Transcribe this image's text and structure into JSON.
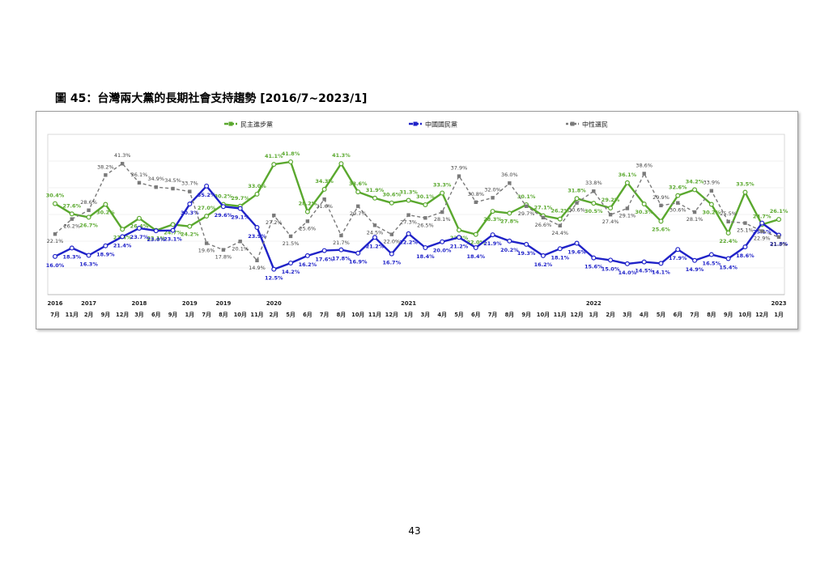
{
  "figure_title": "圖 45：台灣兩大黨的長期社會支持趨勢 [2016/7~2023/1]",
  "page_number": "43",
  "colors": {
    "dpp": "#5aa82e",
    "kmt": "#1f22c8",
    "neutral": "#7a7a7a"
  },
  "chart_data": {
    "type": "line",
    "title": "",
    "xlabel": "",
    "ylabel": "",
    "grid": true,
    "legend_position": "top",
    "ylim": [
      10,
      44
    ],
    "x": [
      {
        "year": "2016",
        "month": "7月"
      },
      {
        "year": "",
        "month": "11月"
      },
      {
        "year": "2017",
        "month": "2月"
      },
      {
        "year": "",
        "month": "9月"
      },
      {
        "year": "",
        "month": "12月"
      },
      {
        "year": "2018",
        "month": "3月"
      },
      {
        "year": "",
        "month": "6月"
      },
      {
        "year": "",
        "month": "9月"
      },
      {
        "year": "2019",
        "month": "1月"
      },
      {
        "year": "",
        "month": "7月"
      },
      {
        "year": "2019",
        "month": "8月"
      },
      {
        "year": "",
        "month": "10月"
      },
      {
        "year": "",
        "month": "11月"
      },
      {
        "year": "2020",
        "month": "2月"
      },
      {
        "year": "",
        "month": "5月"
      },
      {
        "year": "",
        "month": "6月"
      },
      {
        "year": "",
        "month": "7月"
      },
      {
        "year": "",
        "month": "8月"
      },
      {
        "year": "",
        "month": "10月"
      },
      {
        "year": "",
        "month": "11月"
      },
      {
        "year": "",
        "month": "12月"
      },
      {
        "year": "2021",
        "month": "1月"
      },
      {
        "year": "",
        "month": "3月"
      },
      {
        "year": "",
        "month": "4月"
      },
      {
        "year": "",
        "month": "5月"
      },
      {
        "year": "",
        "month": "6月"
      },
      {
        "year": "",
        "month": "7月"
      },
      {
        "year": "",
        "month": "8月"
      },
      {
        "year": "",
        "month": "9月"
      },
      {
        "year": "",
        "month": "10月"
      },
      {
        "year": "",
        "month": "11月"
      },
      {
        "year": "",
        "month": "12月"
      },
      {
        "year": "2022",
        "month": "1月"
      },
      {
        "year": "",
        "month": "2月"
      },
      {
        "year": "",
        "month": "3月"
      },
      {
        "year": "",
        "month": "4月"
      },
      {
        "year": "",
        "month": "5月"
      },
      {
        "year": "",
        "month": "6月"
      },
      {
        "year": "",
        "month": "7月"
      },
      {
        "year": "",
        "month": "8月"
      },
      {
        "year": "",
        "month": "9月"
      },
      {
        "year": "",
        "month": "10月"
      },
      {
        "year": "",
        "month": "12月"
      },
      {
        "year": "2023",
        "month": "1月"
      }
    ],
    "series": [
      {
        "name": "民主進步黨",
        "key": "dpp",
        "values": [
          30.4,
          27.6,
          26.7,
          30.2,
          23.4,
          26.4,
          23.1,
          24.7,
          24.2,
          27.0,
          30.2,
          29.7,
          33.0,
          41.1,
          41.8,
          28.2,
          34.3,
          41.3,
          33.6,
          31.9,
          30.6,
          31.3,
          30.1,
          33.3,
          23.2,
          22.0,
          28.3,
          27.8,
          30.1,
          27.1,
          26.2,
          31.8,
          30.5,
          29.2,
          36.1,
          30.3,
          25.6,
          32.6,
          34.2,
          30.2,
          22.4,
          33.5,
          24.7,
          26.1
        ]
      },
      {
        "name": "中國國民黨",
        "key": "kmt",
        "values": [
          16.0,
          18.3,
          16.3,
          18.9,
          21.4,
          23.7,
          23.0,
          23.1,
          30.3,
          35.2,
          29.6,
          29.1,
          23.9,
          12.5,
          14.2,
          16.2,
          17.6,
          17.8,
          16.9,
          21.2,
          16.7,
          22.2,
          18.4,
          20.0,
          21.2,
          18.4,
          21.9,
          20.2,
          19.3,
          16.2,
          18.1,
          19.6,
          15.6,
          15.0,
          14.0,
          14.5,
          14.1,
          17.9,
          14.9,
          16.5,
          15.4,
          18.6,
          25.1,
          21.8
        ]
      },
      {
        "name": "中性選民",
        "key": "neutral",
        "values": [
          22.1,
          26.2,
          28.6,
          38.2,
          41.3,
          36.1,
          34.9,
          34.5,
          33.7,
          19.6,
          17.8,
          20.1,
          14.9,
          27.2,
          21.5,
          25.6,
          31.6,
          21.7,
          29.7,
          24.5,
          22.0,
          27.3,
          26.5,
          28.1,
          37.9,
          30.8,
          32.0,
          36.0,
          29.7,
          26.6,
          24.4,
          30.6,
          33.8,
          27.4,
          29.1,
          38.6,
          29.9,
          30.6,
          28.1,
          33.9,
          25.5,
          25.1,
          22.9,
          21.3
        ]
      }
    ]
  }
}
